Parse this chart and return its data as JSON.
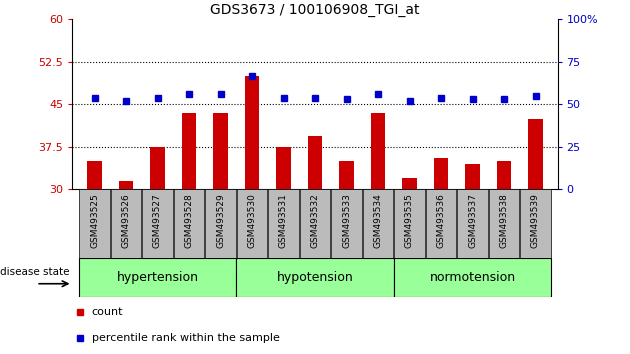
{
  "title": "GDS3673 / 100106908_TGI_at",
  "categories": [
    "GSM493525",
    "GSM493526",
    "GSM493527",
    "GSM493528",
    "GSM493529",
    "GSM493530",
    "GSM493531",
    "GSM493532",
    "GSM493533",
    "GSM493534",
    "GSM493535",
    "GSM493536",
    "GSM493537",
    "GSM493538",
    "GSM493539"
  ],
  "bar_values": [
    35.0,
    31.5,
    37.5,
    43.5,
    43.5,
    50.0,
    37.5,
    39.5,
    35.0,
    43.5,
    32.0,
    35.5,
    34.5,
    35.0,
    42.5
  ],
  "dot_values": [
    54,
    52,
    54,
    56,
    56,
    67,
    54,
    54,
    53,
    56,
    52,
    54,
    53,
    53,
    55
  ],
  "ylim_left": [
    30,
    60
  ],
  "ylim_right": [
    0,
    100
  ],
  "yticks_left": [
    30,
    37.5,
    45,
    52.5,
    60
  ],
  "yticks_right": [
    0,
    25,
    50,
    75,
    100
  ],
  "hlines": [
    37.5,
    45,
    52.5
  ],
  "bar_color": "#cc0000",
  "dot_color": "#0000cc",
  "groups": [
    {
      "label": "hypertension",
      "start": 0,
      "end": 5
    },
    {
      "label": "hypotension",
      "start": 5,
      "end": 10
    },
    {
      "label": "normotension",
      "start": 10,
      "end": 15
    }
  ],
  "group_color": "#99ff99",
  "group_border_color": "#009900",
  "xtick_bg": "#bbbbbb",
  "disease_state_label": "disease state",
  "legend_items": [
    {
      "label": "count",
      "color": "#cc0000"
    },
    {
      "label": "percentile rank within the sample",
      "color": "#0000cc"
    }
  ],
  "fig_bg": "#ffffff"
}
